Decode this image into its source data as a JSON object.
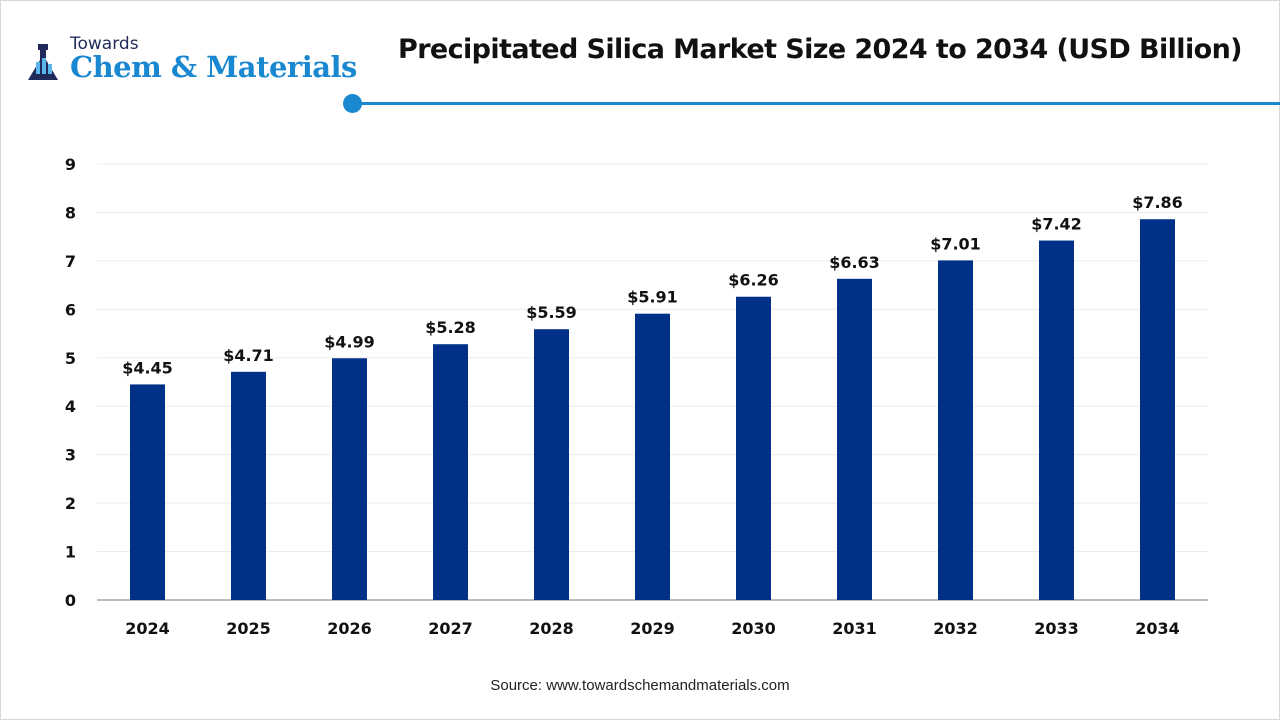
{
  "logo": {
    "top_text": "Towards",
    "main_text": "Chem & Materials"
  },
  "colors": {
    "bar": "#003087",
    "accent": "#1a88d0",
    "grid": "#ececec",
    "axis": "#bdbdbd"
  },
  "source": "Source: www.towardschemandmaterials.com",
  "chart_data": {
    "type": "bar",
    "title": "Precipitated Silica Market Size 2024 to 2034 (USD Billion)",
    "categories": [
      "2024",
      "2025",
      "2026",
      "2027",
      "2028",
      "2029",
      "2030",
      "2031",
      "2032",
      "2033",
      "2034"
    ],
    "values": [
      4.45,
      4.71,
      4.99,
      5.28,
      5.59,
      5.91,
      6.26,
      6.63,
      7.01,
      7.42,
      7.86
    ],
    "data_labels": [
      "$4.45",
      "$4.71",
      "$4.99",
      "$5.28",
      "$5.59",
      "$5.91",
      "$6.26",
      "$6.63",
      "$7.01",
      "$7.42",
      "$7.86"
    ],
    "yticks": [
      "0",
      "1",
      "2",
      "3",
      "4",
      "5",
      "6",
      "7",
      "8",
      "9"
    ],
    "ylim": [
      0,
      9
    ],
    "xlabel": "",
    "ylabel": "",
    "grid": true,
    "legend": "none"
  }
}
